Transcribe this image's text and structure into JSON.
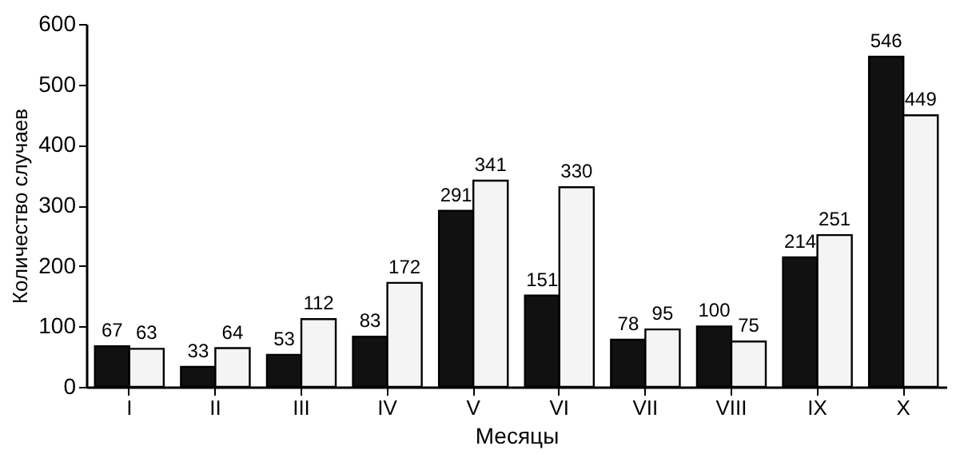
{
  "chart_data": {
    "type": "bar",
    "xlabel": "Месяцы",
    "ylabel": "Количество случаев",
    "categories": [
      "I",
      "II",
      "III",
      "IV",
      "V",
      "VI",
      "VII",
      "VIII",
      "IX",
      "X"
    ],
    "series": [
      {
        "color": "#111111",
        "values": [
          67,
          33,
          53,
          83,
          291,
          151,
          78,
          100,
          214,
          546
        ]
      },
      {
        "color": "#f4f4f4",
        "values": [
          63,
          64,
          112,
          172,
          341,
          330,
          95,
          75,
          251,
          449
        ]
      }
    ],
    "ylim": [
      0,
      600
    ],
    "yticks": [
      0,
      100,
      200,
      300,
      400,
      500,
      600
    ],
    "data_labels": true,
    "grid": false,
    "legend": false
  }
}
